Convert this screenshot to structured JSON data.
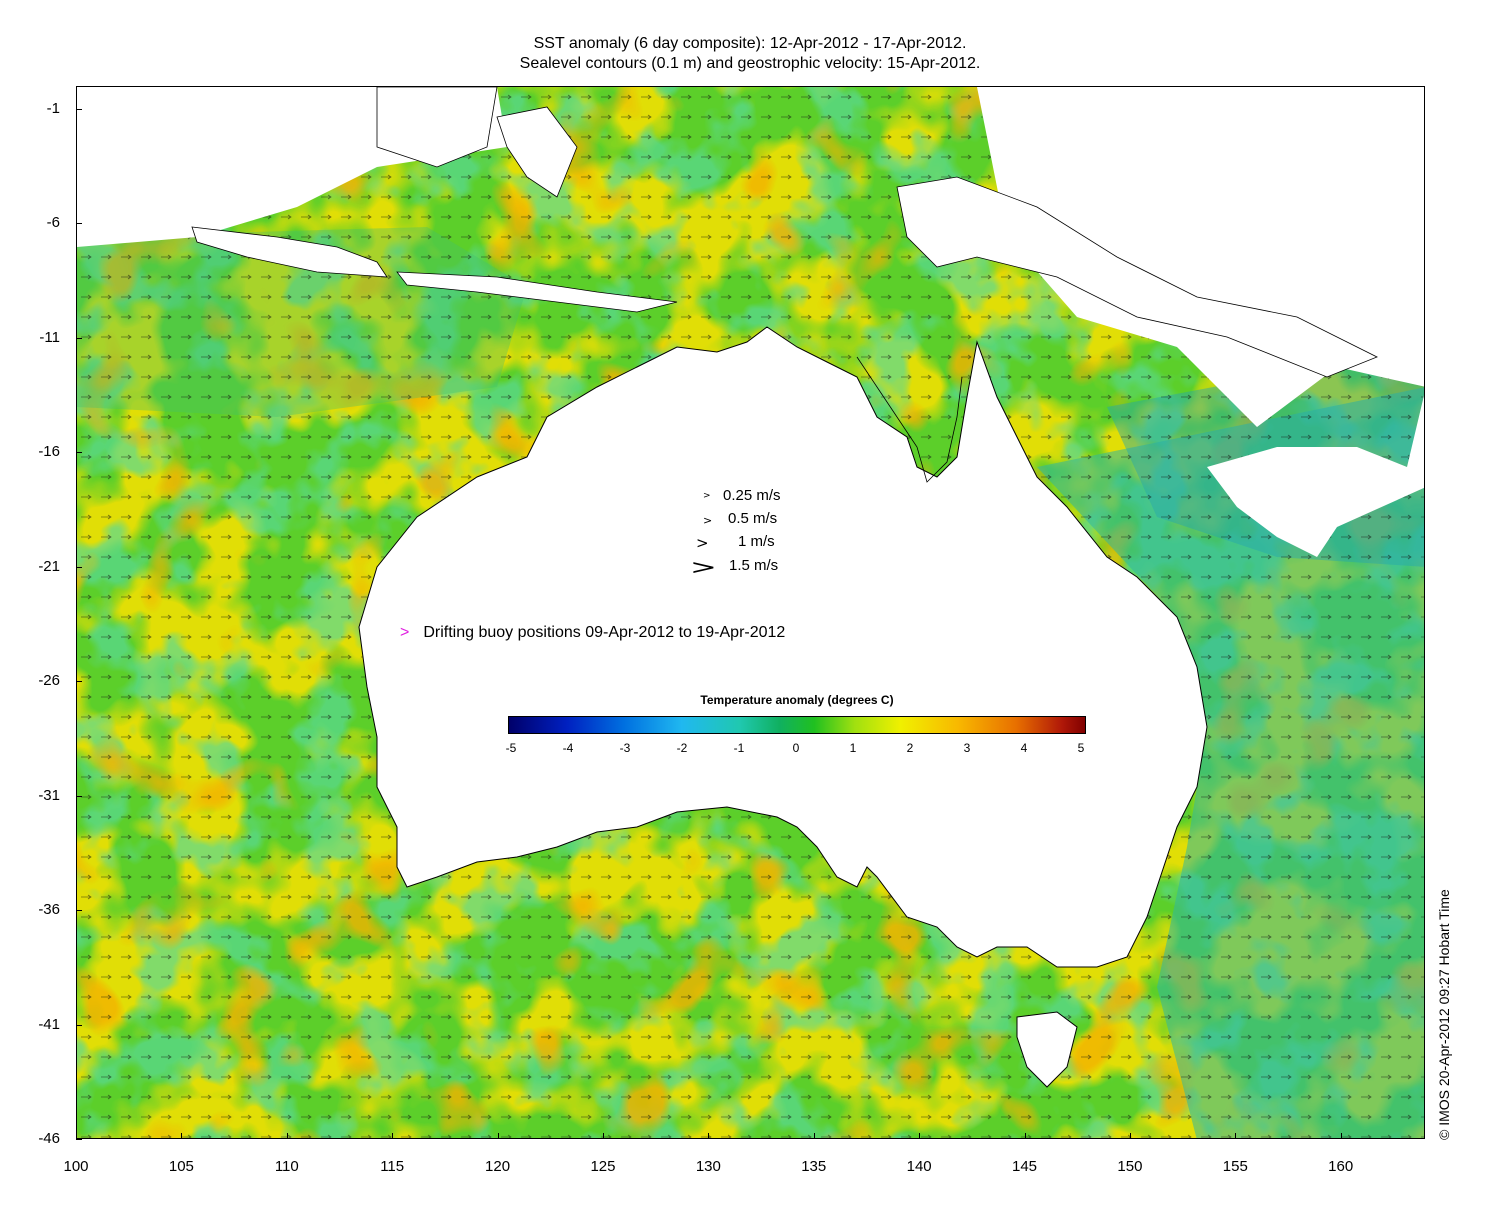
{
  "title_line1": "SST anomaly (6 day composite): 12-Apr-2012 - 17-Apr-2012.",
  "title_line2": "Sealevel contours (0.1 m) and geostrophic velocity: 15-Apr-2012.",
  "axes": {
    "lon_min": 100,
    "lon_max": 164,
    "lat_min": -46,
    "lat_max": 0,
    "x_ticks": [
      "100",
      "105",
      "110",
      "115",
      "120",
      "125",
      "130",
      "135",
      "140",
      "145",
      "150",
      "155",
      "160"
    ],
    "y_ticks": [
      "-1",
      "-6",
      "-11",
      "-16",
      "-21",
      "-26",
      "-31",
      "-36",
      "-41",
      "-46"
    ]
  },
  "velocity_legend": [
    {
      "label": "0.25 m/s"
    },
    {
      "label": "0.5 m/s"
    },
    {
      "label": "1 m/s"
    },
    {
      "label": "1.5 m/s"
    }
  ],
  "buoy_legend": {
    "marker": ">",
    "label": "Drifting buoy positions 09-Apr-2012 to 19-Apr-2012",
    "color": "#e020e0"
  },
  "colorbar": {
    "title": "Temperature anomaly (degrees C)",
    "ticks": [
      "-5",
      "-4",
      "-3",
      "-2",
      "-1",
      "0",
      "1",
      "2",
      "3",
      "4",
      "5"
    ],
    "min": -5,
    "max": 5
  },
  "copyright": "© IMOS 20-Apr-2012 09:27 Hobart Time"
}
